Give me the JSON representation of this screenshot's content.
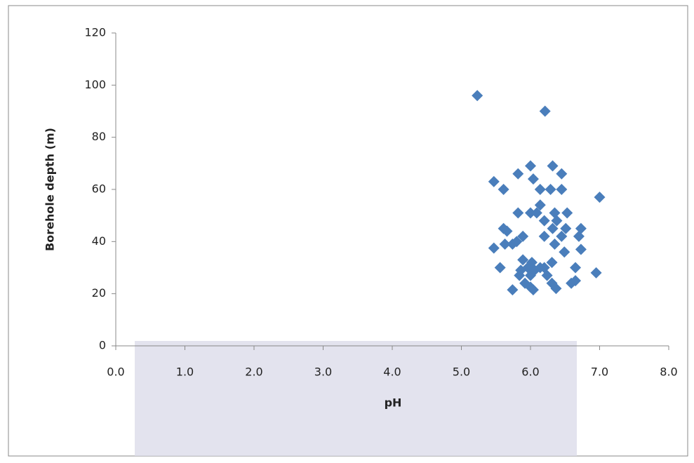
{
  "chart_data": {
    "type": "scatter",
    "x_label": "pH",
    "y_label": "Borehole depth (m)",
    "xlim": [
      0,
      8
    ],
    "ylim": [
      0,
      120
    ],
    "xticks": [
      {
        "value": 0,
        "label": "0.0"
      },
      {
        "value": 1,
        "label": "1.0"
      },
      {
        "value": 2,
        "label": "2.0"
      },
      {
        "value": 3,
        "label": "3.0"
      },
      {
        "value": 4,
        "label": "4.0"
      },
      {
        "value": 5,
        "label": "5.0"
      },
      {
        "value": 6,
        "label": "6.0"
      },
      {
        "value": 7,
        "label": "7.0"
      },
      {
        "value": 8,
        "label": "8.0"
      }
    ],
    "yticks": [
      0,
      20,
      40,
      60,
      80,
      100,
      120
    ],
    "color": "#4a7ebb",
    "x": [
      5.23,
      6.21,
      5.47,
      5.61,
      5.82,
      6.0,
      6.04,
      6.32,
      6.45,
      6.14,
      6.29,
      6.45,
      7.0,
      5.82,
      6.0,
      6.09,
      6.14,
      6.2,
      6.35,
      6.53,
      6.38,
      5.61,
      5.66,
      6.32,
      6.51,
      6.73,
      5.89,
      6.2,
      6.45,
      6.7,
      5.63,
      5.74,
      5.8,
      6.35,
      5.47,
      6.49,
      6.73,
      5.56,
      5.89,
      6.02,
      6.31,
      6.2,
      5.86,
      5.96,
      6.06,
      6.14,
      5.84,
      6.0,
      6.24,
      6.95,
      6.65,
      6.65,
      6.59,
      5.92,
      6.0,
      6.04,
      5.74,
      6.37,
      6.31
    ],
    "y": [
      96,
      90,
      63,
      60,
      66,
      69,
      64,
      69,
      66,
      60,
      60,
      60,
      57,
      51,
      51,
      51,
      54,
      48,
      51,
      51,
      48,
      45,
      44,
      45,
      45,
      45,
      42,
      42,
      42,
      42,
      39,
      39,
      40,
      39,
      37.5,
      36,
      37,
      30,
      33,
      32,
      32,
      30,
      29,
      30,
      29,
      30,
      27,
      27,
      27,
      28,
      30,
      25,
      24,
      24,
      22.5,
      21.5,
      21.5,
      22,
      24
    ]
  }
}
